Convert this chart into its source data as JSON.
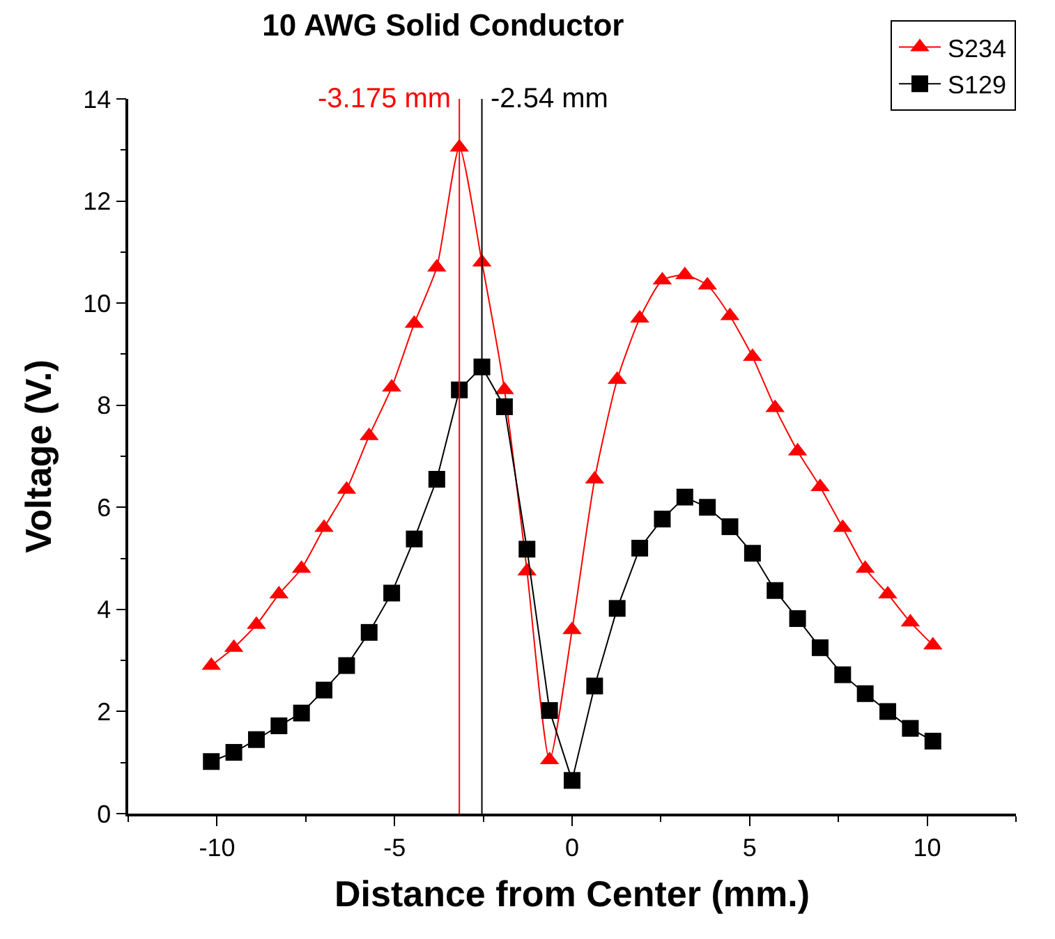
{
  "chart_data": {
    "type": "line",
    "title": "10 AWG Solid Conductor",
    "xlabel": "Distance from Center (mm.)",
    "ylabel": "Voltage (V.)",
    "x": [
      -10.16,
      -9.525,
      -8.89,
      -8.255,
      -7.62,
      -6.985,
      -6.35,
      -5.715,
      -5.08,
      -4.445,
      -3.81,
      -3.175,
      -2.54,
      -1.905,
      -1.27,
      -0.635,
      0,
      0.635,
      1.27,
      1.905,
      2.54,
      3.175,
      3.81,
      4.445,
      5.08,
      5.715,
      6.35,
      6.985,
      7.62,
      8.255,
      8.89,
      9.525,
      10.16
    ],
    "series": [
      {
        "name": "S234",
        "color": "#ff0000",
        "marker": "triangle",
        "values": [
          2.9,
          3.25,
          3.7,
          4.3,
          4.8,
          5.6,
          6.35,
          7.4,
          8.35,
          9.6,
          10.7,
          13.05,
          10.8,
          8.3,
          4.75,
          1.05,
          3.6,
          6.55,
          8.5,
          9.7,
          10.45,
          10.55,
          10.35,
          9.75,
          8.95,
          7.95,
          7.1,
          6.4,
          5.6,
          4.8,
          4.3,
          3.75,
          3.3
        ]
      },
      {
        "name": "S129",
        "color": "#000000",
        "marker": "square",
        "values": [
          1.02,
          1.2,
          1.45,
          1.72,
          1.97,
          2.42,
          2.9,
          3.55,
          4.32,
          5.38,
          6.55,
          8.3,
          8.75,
          7.97,
          5.18,
          2.02,
          0.65,
          2.5,
          4.02,
          5.2,
          5.77,
          6.2,
          6.0,
          5.62,
          5.1,
          4.37,
          3.82,
          3.25,
          2.72,
          2.35,
          2.0,
          1.67,
          1.42
        ]
      }
    ],
    "xlim": [
      -12.5,
      12.5
    ],
    "xticks": [
      -10,
      -5,
      0,
      5,
      10
    ],
    "ylim": [
      0,
      14
    ],
    "yticks": [
      0,
      2,
      4,
      6,
      8,
      10,
      12,
      14
    ],
    "ref_lines": [
      {
        "axis": "x",
        "value": -3.175,
        "label": "-3.175 mm",
        "color": "#ff0000"
      },
      {
        "axis": "x",
        "value": -2.54,
        "label": "-2.54 mm",
        "color": "#000000"
      }
    ],
    "legend": "top right"
  }
}
